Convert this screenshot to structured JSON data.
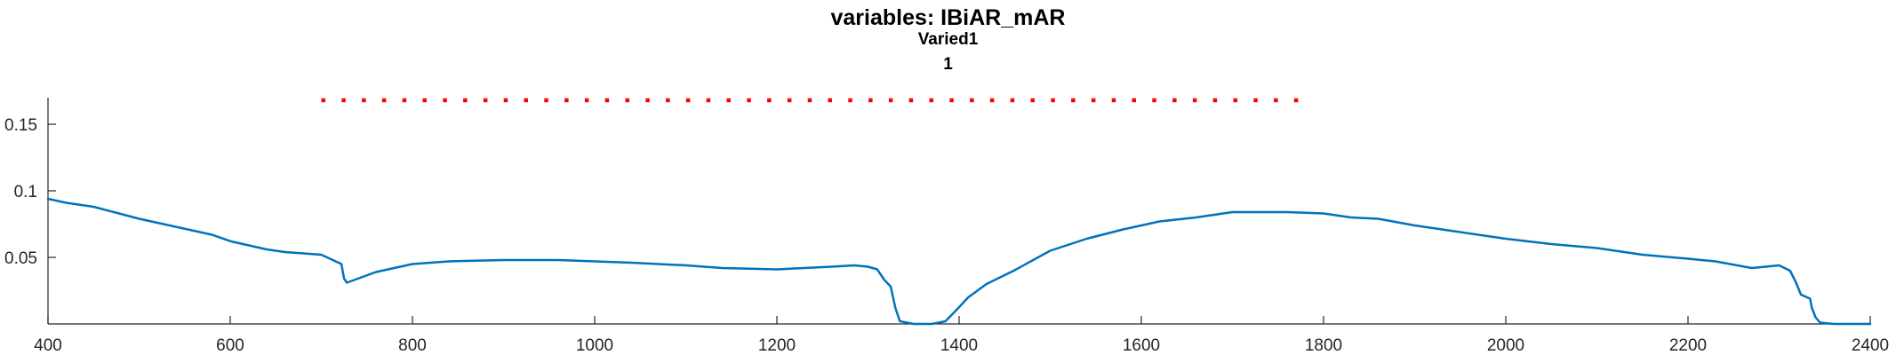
{
  "chart_data": {
    "type": "line",
    "title": "variables: IBiAR_mAR",
    "subtitle": [
      "Varied1",
      "1"
    ],
    "xlabel": "",
    "ylabel": "",
    "xlim": [
      400,
      2400
    ],
    "ylim": [
      0,
      0.17
    ],
    "xticks": [
      400,
      600,
      800,
      1000,
      1200,
      1400,
      1600,
      1800,
      2000,
      2200,
      2400
    ],
    "xtick_labels": [
      "400",
      "600",
      "800",
      "1000",
      "1200",
      "1400",
      "1600",
      "1800",
      "2000",
      "2200",
      "2400"
    ],
    "yticks": [
      0.05,
      0.1,
      0.15
    ],
    "ytick_labels": [
      "0.05",
      "0.1",
      "0.15"
    ],
    "grid": false,
    "series": [
      {
        "color": "#0072bd",
        "x": [
          400,
          420,
          450,
          500,
          540,
          580,
          601,
          640,
          660,
          680,
          700,
          722,
          725,
          728,
          760,
          800,
          840,
          900,
          960,
          1000,
          1040,
          1100,
          1140,
          1200,
          1260,
          1285,
          1300,
          1310,
          1318,
          1325,
          1330,
          1335,
          1350,
          1370,
          1385,
          1395,
          1410,
          1430,
          1460,
          1500,
          1540,
          1580,
          1620,
          1660,
          1700,
          1760,
          1800,
          1830,
          1860,
          1900,
          1950,
          2000,
          2050,
          2100,
          2150,
          2200,
          2230,
          2270,
          2300,
          2312,
          2318,
          2324,
          2334,
          2336,
          2340,
          2345,
          2360,
          2400
        ],
        "y": [
          0.094,
          0.091,
          0.088,
          0.079,
          0.073,
          0.067,
          0.062,
          0.056,
          0.054,
          0.053,
          0.052,
          0.045,
          0.034,
          0.031,
          0.039,
          0.045,
          0.047,
          0.048,
          0.048,
          0.047,
          0.046,
          0.044,
          0.042,
          0.041,
          0.043,
          0.044,
          0.043,
          0.041,
          0.033,
          0.028,
          0.012,
          0.002,
          0.0,
          0.0,
          0.002,
          0.009,
          0.02,
          0.03,
          0.04,
          0.055,
          0.064,
          0.071,
          0.077,
          0.08,
          0.084,
          0.084,
          0.083,
          0.08,
          0.079,
          0.074,
          0.069,
          0.064,
          0.06,
          0.057,
          0.052,
          0.049,
          0.047,
          0.042,
          0.044,
          0.04,
          0.032,
          0.022,
          0.019,
          0.012,
          0.005,
          0.001,
          0.0,
          0.0
        ],
        "line_width": 2.5
      },
      {
        "color": "#ff0000",
        "style": "dotted",
        "x_range": [
          700,
          1780
        ],
        "y": 0.168
      }
    ]
  }
}
